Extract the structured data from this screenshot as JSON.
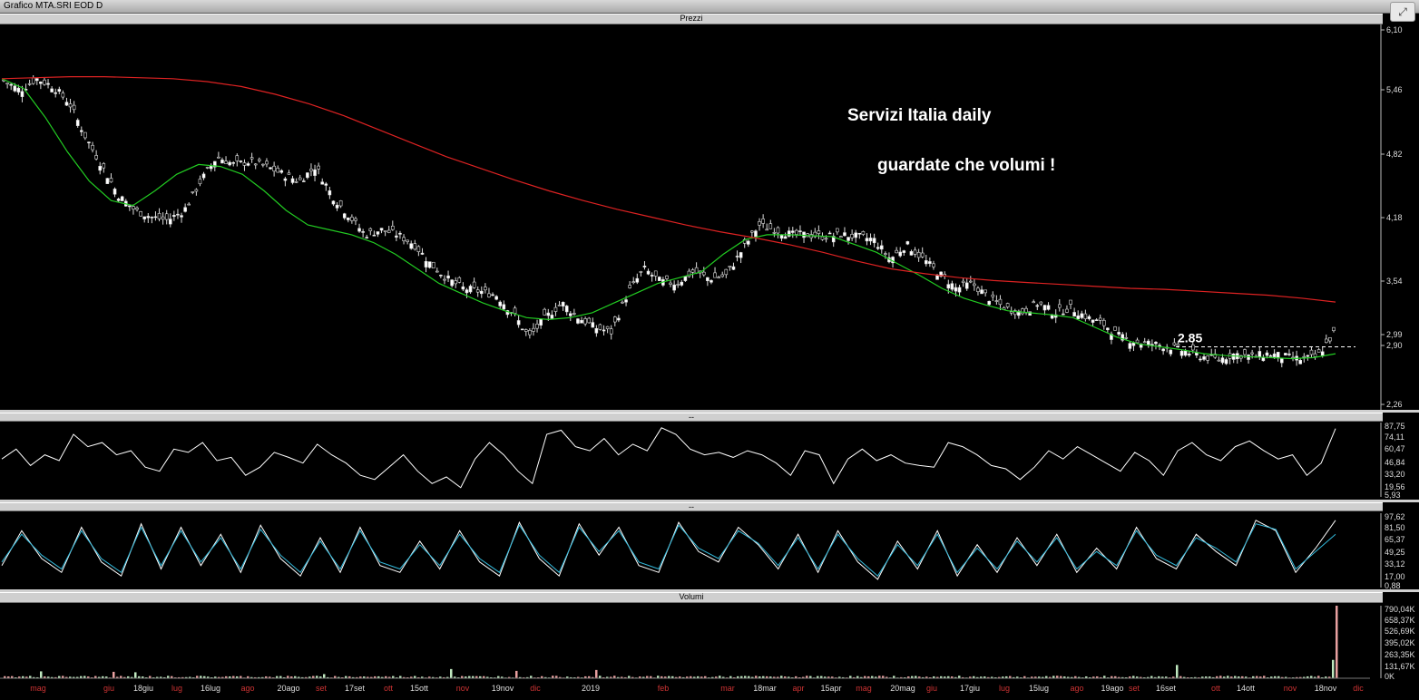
{
  "window": {
    "title": "Grafico MTA.SRI EOD D",
    "corner_icon": "fullscreen-icon"
  },
  "panels": {
    "price_label": "Prezzi",
    "rsi_label": "--",
    "stoch_label": "--",
    "volume_label": "Volumi"
  },
  "annotations": {
    "line1": "Servizi Italia daily",
    "line2": "guardate che volumi !",
    "level_label": "2.85"
  },
  "colors": {
    "background": "#000000",
    "candle_up": "#ffffff",
    "ma_short": "#22cc22",
    "ma_long": "#dd2222",
    "oscillator": "#ffffff",
    "stoch_k": "#ffffff",
    "stoch_d": "#33bbdd",
    "volume_up": "#bfe8bf",
    "volume_down": "#e8a0a0",
    "month_label": "#cc3333"
  },
  "chart_data": [
    {
      "type": "candlestick",
      "title": "Prezzi",
      "y_ticks": [
        "6,10",
        "5,46",
        "4,82",
        "4,18",
        "3,54",
        "2,99",
        "2,90",
        "2,26"
      ],
      "ylim": [
        2.26,
        6.1
      ],
      "x_labels": [
        "mag",
        "giu",
        "18giu",
        "lug",
        "16lug",
        "ago",
        "20ago",
        "set",
        "17set",
        "ott",
        "15ott",
        "nov",
        "19nov",
        "dic",
        "2019",
        "feb",
        "mar",
        "18mar",
        "apr",
        "15apr",
        "mag",
        "20mag",
        "giu",
        "17giu",
        "lug",
        "15lug",
        "ago",
        "19ago",
        "set",
        "16set",
        "ott",
        "14ott",
        "nov",
        "18nov",
        "dic"
      ],
      "close_path": [
        5.58,
        5.48,
        5.6,
        5.52,
        5.35,
        5.0,
        4.7,
        4.4,
        4.25,
        4.18,
        4.15,
        4.25,
        4.55,
        4.8,
        4.72,
        4.75,
        4.7,
        4.62,
        4.55,
        4.7,
        4.4,
        4.2,
        4.0,
        4.05,
        4.0,
        3.9,
        3.7,
        3.55,
        3.45,
        3.42,
        3.38,
        3.2,
        2.95,
        3.15,
        3.3,
        3.15,
        3.05,
        3.0,
        3.4,
        3.65,
        3.52,
        3.5,
        3.62,
        3.55,
        3.58,
        3.85,
        4.1,
        4.05,
        4.0,
        4.0,
        3.98,
        4.0,
        3.98,
        3.95,
        3.75,
        3.9,
        3.75,
        3.6,
        3.45,
        3.5,
        3.35,
        3.25,
        3.2,
        3.3,
        3.2,
        3.25,
        3.15,
        3.08,
        2.95,
        2.9,
        2.88,
        2.85,
        2.8,
        2.75,
        2.72,
        2.78,
        2.75,
        2.78,
        2.75,
        2.72,
        2.75,
        2.99
      ],
      "series": [
        {
          "name": "",
          "color": "#22cc22",
          "values": [
            5.6,
            5.5,
            5.2,
            4.85,
            4.55,
            4.35,
            4.3,
            4.45,
            4.62,
            4.72,
            4.7,
            4.62,
            4.45,
            4.25,
            4.1,
            4.05,
            4.0,
            3.92,
            3.8,
            3.65,
            3.5,
            3.4,
            3.3,
            3.22,
            3.15,
            3.13,
            3.15,
            3.2,
            3.3,
            3.4,
            3.5,
            3.56,
            3.62,
            3.8,
            3.95,
            4.0,
            4.0,
            3.99,
            3.98,
            3.9,
            3.82,
            3.7,
            3.58,
            3.45,
            3.35,
            3.28,
            3.22,
            3.2,
            3.18,
            3.15,
            3.05,
            2.95,
            2.88,
            2.85,
            2.82,
            2.78,
            2.76,
            2.75,
            2.74,
            2.73,
            2.74,
            2.78
          ]
        },
        {
          "name": "",
          "color": "#dd2222",
          "values": [
            5.6,
            5.61,
            5.62,
            5.62,
            5.61,
            5.6,
            5.57,
            5.52,
            5.44,
            5.34,
            5.22,
            5.08,
            4.94,
            4.8,
            4.68,
            4.56,
            4.45,
            4.35,
            4.26,
            4.18,
            4.1,
            4.03,
            3.97,
            3.9,
            3.82,
            3.73,
            3.65,
            3.6,
            3.56,
            3.53,
            3.51,
            3.49,
            3.47,
            3.45,
            3.44,
            3.42,
            3.4,
            3.38,
            3.35,
            3.31
          ]
        }
      ],
      "level_line": {
        "value": 2.85,
        "label": "2.85"
      }
    },
    {
      "type": "line",
      "title": "",
      "y_ticks": [
        "87,75",
        "74,11",
        "60,47",
        "46,84",
        "33,20",
        "19,56",
        "5,93"
      ],
      "ylim": [
        5.93,
        90
      ],
      "values": [
        50,
        62,
        42,
        55,
        48,
        80,
        65,
        70,
        55,
        60,
        40,
        35,
        62,
        58,
        70,
        48,
        52,
        30,
        40,
        58,
        52,
        45,
        68,
        55,
        45,
        30,
        25,
        40,
        55,
        35,
        20,
        28,
        15,
        50,
        70,
        55,
        35,
        20,
        80,
        85,
        65,
        60,
        75,
        55,
        68,
        60,
        88,
        80,
        62,
        55,
        58,
        52,
        60,
        55,
        45,
        30,
        60,
        55,
        20,
        50,
        62,
        48,
        55,
        45,
        42,
        40,
        70,
        65,
        55,
        42,
        38,
        25,
        40,
        60,
        50,
        65,
        55,
        45,
        35,
        58,
        48,
        30,
        60,
        70,
        55,
        48,
        65,
        72,
        60,
        50,
        55,
        30,
        45,
        87
      ]
    },
    {
      "type": "line",
      "title": "",
      "y_ticks": [
        "97,62",
        "81,50",
        "65,37",
        "49,25",
        "33,12",
        "17,00",
        "0,88"
      ],
      "ylim": [
        0.88,
        100
      ],
      "series": [
        {
          "name": "",
          "color": "#ffffff",
          "values": [
            30,
            80,
            40,
            20,
            85,
            35,
            15,
            90,
            25,
            85,
            30,
            75,
            20,
            88,
            40,
            15,
            70,
            20,
            85,
            30,
            20,
            65,
            25,
            80,
            35,
            15,
            92,
            40,
            15,
            90,
            45,
            85,
            30,
            20,
            92,
            50,
            35,
            85,
            60,
            25,
            75,
            20,
            80,
            35,
            10,
            65,
            25,
            80,
            15,
            60,
            20,
            70,
            30,
            75,
            20,
            55,
            25,
            85,
            40,
            25,
            75,
            50,
            30,
            95,
            80,
            20,
            55,
            95
          ]
        },
        {
          "name": "",
          "color": "#33bbdd",
          "values": [
            35,
            75,
            45,
            25,
            80,
            40,
            20,
            85,
            30,
            80,
            35,
            70,
            25,
            82,
            45,
            20,
            65,
            25,
            80,
            35,
            25,
            60,
            30,
            75,
            40,
            20,
            88,
            45,
            20,
            85,
            50,
            80,
            35,
            25,
            88,
            55,
            40,
            80,
            62,
            30,
            70,
            25,
            75,
            40,
            15,
            60,
            30,
            75,
            20,
            55,
            25,
            65,
            35,
            70,
            25,
            50,
            30,
            80,
            45,
            30,
            70,
            55,
            35,
            90,
            82,
            25,
            50,
            75
          ]
        }
      ]
    },
    {
      "type": "bar",
      "title": "Volumi",
      "y_ticks": [
        "790,04K",
        "658,37K",
        "526,69K",
        "395,02K",
        "263,35K",
        "131,67K",
        "0K"
      ],
      "ylim": [
        0,
        790040
      ],
      "baseline": 18000,
      "peaks": [
        [
          26,
          60000
        ],
        [
          44,
          75000
        ],
        [
          124,
          70000
        ],
        [
          148,
          65000
        ],
        [
          170,
          110000
        ],
        [
          356,
          45000
        ],
        [
          370,
          40000
        ],
        [
          462,
          75000
        ],
        [
          496,
          100000
        ],
        [
          568,
          80000
        ],
        [
          656,
          90000
        ],
        [
          766,
          85000
        ],
        [
          770,
          60000
        ],
        [
          874,
          55000
        ],
        [
          1186,
          60000
        ],
        [
          1214,
          75000
        ],
        [
          1286,
          130000
        ],
        [
          1296,
          145000
        ],
        [
          1458,
          130000
        ],
        [
          1468,
          200000
        ],
        [
          1472,
          790040
        ]
      ]
    }
  ]
}
